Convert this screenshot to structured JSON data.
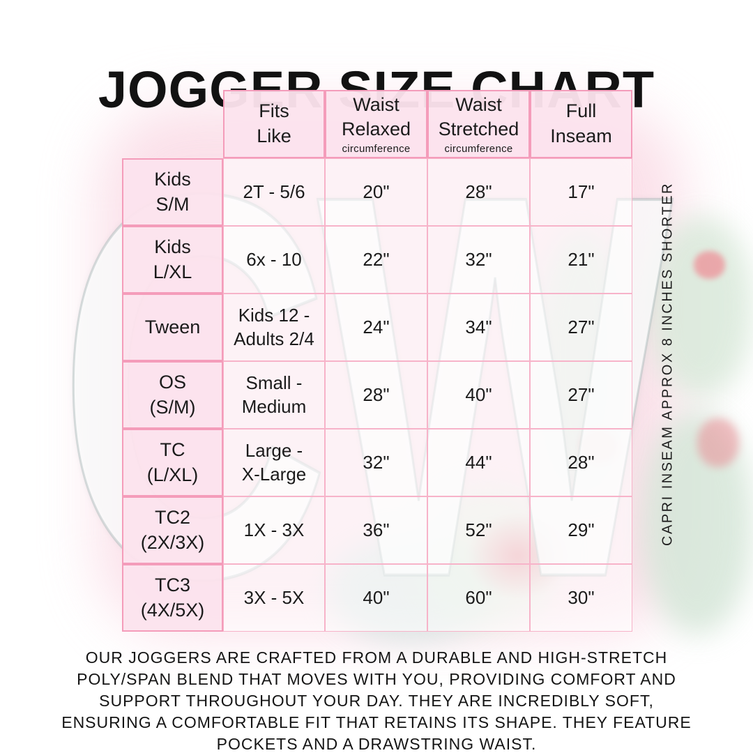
{
  "title": "JOGGER SIZE CHART",
  "watermark_text": "CW",
  "side_note": "CAPRI INSEAM APPROX 8 INCHES SHORTER",
  "description": "OUR JOGGERS ARE CRAFTED FROM A DURABLE AND HIGH-STRETCH\nPOLY/SPAN BLEND THAT MOVES WITH YOU, PROVIDING COMFORT AND\nSUPPORT THROUGHOUT YOUR DAY. THEY ARE INCREDIBLY SOFT,\nENSURING A COMFORTABLE FIT THAT RETAINS ITS SHAPE. THEY FEATURE\nPOCKETS AND A DRAWSTRING WAIST.",
  "colors": {
    "border_pink_strong": "#f49cba",
    "border_pink_light": "#f7b3c9",
    "cell_pink": "#fce3ec",
    "wash_pink": "#f9d3e0",
    "text": "#1b1b1b"
  },
  "table": {
    "headers": [
      {
        "label": "Fits\nLike",
        "sub": ""
      },
      {
        "label": "Waist\nRelaxed",
        "sub": "circumference"
      },
      {
        "label": "Waist\nStretched",
        "sub": "circumference"
      },
      {
        "label": "Full\nInseam",
        "sub": ""
      }
    ],
    "rows": [
      {
        "size": "Kids\nS/M",
        "fits": "2T - 5/6",
        "waist_relaxed": "20\"",
        "waist_stretched": "28\"",
        "inseam": "17\""
      },
      {
        "size": "Kids\nL/XL",
        "fits": "6x - 10",
        "waist_relaxed": "22\"",
        "waist_stretched": "32\"",
        "inseam": "21\""
      },
      {
        "size": "Tween",
        "fits": "Kids 12 -\nAdults 2/4",
        "waist_relaxed": "24\"",
        "waist_stretched": "34\"",
        "inseam": "27\""
      },
      {
        "size": "OS\n(S/M)",
        "fits": "Small -\nMedium",
        "waist_relaxed": "28\"",
        "waist_stretched": "40\"",
        "inseam": "27\""
      },
      {
        "size": "TC\n(L/XL)",
        "fits": "Large -\nX-Large",
        "waist_relaxed": "32\"",
        "waist_stretched": "44\"",
        "inseam": "28\""
      },
      {
        "size": "TC2\n(2X/3X)",
        "fits": "1X - 3X",
        "waist_relaxed": "36\"",
        "waist_stretched": "52\"",
        "inseam": "29\""
      },
      {
        "size": "TC3\n(4X/5X)",
        "fits": "3X - 5X",
        "waist_relaxed": "40\"",
        "waist_stretched": "60\"",
        "inseam": "30\""
      }
    ]
  }
}
